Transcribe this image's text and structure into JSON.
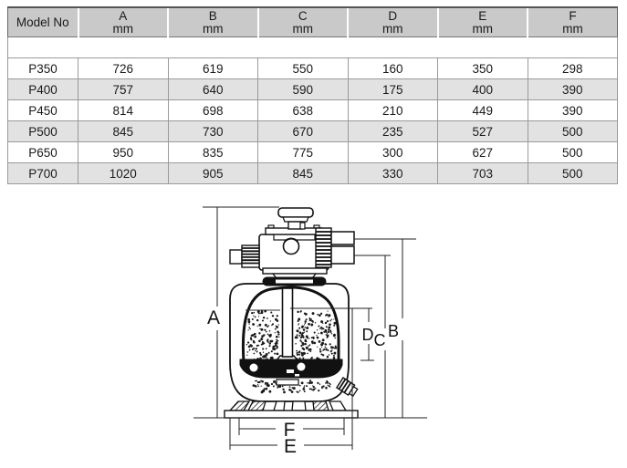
{
  "page": {
    "background": "#ffffff",
    "text_color": "#1a1a1a"
  },
  "table": {
    "header_bg": "#c9c9c9",
    "row_alt_bg": "#e2e2e2",
    "columns": [
      {
        "label": "Model No",
        "unit": ""
      },
      {
        "label": "A",
        "unit": "mm"
      },
      {
        "label": "B",
        "unit": "mm"
      },
      {
        "label": "C",
        "unit": "mm"
      },
      {
        "label": "D",
        "unit": "mm"
      },
      {
        "label": "E",
        "unit": "mm"
      },
      {
        "label": "F",
        "unit": "mm"
      }
    ],
    "rows": [
      {
        "model": "P350",
        "values": [
          "726",
          "619",
          "550",
          "160",
          "350",
          "298"
        ]
      },
      {
        "model": "P400",
        "values": [
          "757",
          "640",
          "590",
          "175",
          "400",
          "390"
        ]
      },
      {
        "model": "P450",
        "values": [
          "814",
          "698",
          "638",
          "210",
          "449",
          "390"
        ]
      },
      {
        "model": "P500",
        "values": [
          "845",
          "730",
          "670",
          "235",
          "527",
          "500"
        ]
      },
      {
        "model": "P650",
        "values": [
          "950",
          "835",
          "775",
          "300",
          "627",
          "500"
        ]
      },
      {
        "model": "P700",
        "values": [
          "1020",
          "905",
          "845",
          "330",
          "703",
          "500"
        ]
      }
    ]
  },
  "diagram": {
    "labels": {
      "a": "A",
      "b": "B",
      "c": "C",
      "d": "D",
      "e": "E",
      "f": "F"
    }
  }
}
